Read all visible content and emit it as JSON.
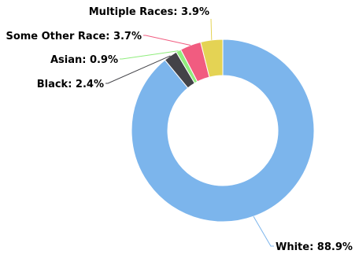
{
  "chart_data": {
    "type": "pie",
    "variant": "donut",
    "title": "",
    "legend": "none",
    "slices": [
      {
        "label": "White: 88.9%",
        "name": "White",
        "value": 88.9,
        "color": "#7cb5ec"
      },
      {
        "label": "Black: 2.4%",
        "name": "Black",
        "value": 2.4,
        "color": "#434348"
      },
      {
        "label": "Asian: 0.9%",
        "name": "Asian",
        "value": 0.9,
        "color": "#90ed7d"
      },
      {
        "label": "Some Other Race: 3.7%",
        "name": "Some Other Race",
        "value": 3.7,
        "color": "#f15c80"
      },
      {
        "label": "Multiple Races: 3.9%",
        "name": "Multiple Races",
        "value": 3.9,
        "color": "#e4d354"
      }
    ]
  }
}
